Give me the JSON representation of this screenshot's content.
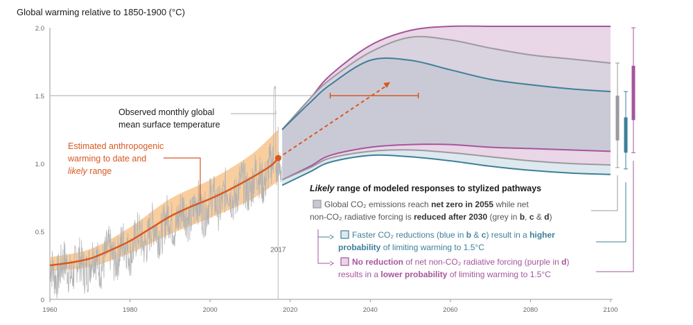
{
  "colors": {
    "orange": "#d9581f",
    "orange_band": "#f8c68d",
    "grey": "#9a9aa0",
    "grey_fill": "#c7c8d3",
    "blue": "#3e7f98",
    "blue_fill": "#dde9ee",
    "purple": "#a6559b",
    "purple_fill": "#e9d6e6",
    "observed": "#b3b3b3"
  },
  "chart_data": {
    "type": "line",
    "title": "Global warming relative to 1850-1900 (°C)",
    "xlim": [
      1960,
      2100
    ],
    "ylim": [
      0,
      2.0
    ],
    "xticks": [
      "1960",
      "1980",
      "2000",
      "2020",
      "2040",
      "2060",
      "2080",
      "2100"
    ],
    "yticks": [
      "0",
      "0.5",
      "1.0",
      "1.5",
      "2.0"
    ],
    "reference_line_y": 1.5,
    "marker_year_label": "2017",
    "series": [
      {
        "name": "Estimated anthropogenic warming (central)",
        "x": [
          1960,
          1965,
          1970,
          1975,
          1980,
          1985,
          1990,
          1995,
          2000,
          2005,
          2010,
          2015,
          2017
        ],
        "y": [
          0.25,
          0.27,
          0.3,
          0.36,
          0.43,
          0.52,
          0.61,
          0.68,
          0.74,
          0.81,
          0.89,
          0.98,
          1.04
        ]
      },
      {
        "name": "Anthropogenic warming likely range (low)",
        "x": [
          1960,
          1970,
          1980,
          1990,
          2000,
          2010,
          2017
        ],
        "y": [
          0.21,
          0.24,
          0.34,
          0.48,
          0.6,
          0.73,
          0.87
        ]
      },
      {
        "name": "Anthropogenic warming likely range (high)",
        "x": [
          1960,
          1970,
          1980,
          1990,
          2000,
          2010,
          2017
        ],
        "y": [
          0.31,
          0.37,
          0.53,
          0.74,
          0.88,
          1.06,
          1.25
        ]
      },
      {
        "name": "Extrapolated trend",
        "x": [
          2017,
          2045
        ],
        "y": [
          1.04,
          1.6
        ]
      },
      {
        "name": "Time range to reach 1.5°C",
        "x": [
          2030,
          2052
        ],
        "y": [
          1.5,
          1.5
        ]
      },
      {
        "name": "Purple pathway upper",
        "x": [
          2018,
          2025,
          2030,
          2040,
          2050,
          2060,
          2070,
          2080,
          2090,
          2100
        ],
        "y": [
          1.25,
          1.48,
          1.65,
          1.87,
          1.98,
          2.01,
          2.01,
          2.01,
          2.01,
          2.01
        ]
      },
      {
        "name": "Grey pathway upper",
        "x": [
          2018,
          2025,
          2030,
          2040,
          2050,
          2060,
          2070,
          2080,
          2090,
          2100
        ],
        "y": [
          1.25,
          1.48,
          1.62,
          1.82,
          1.93,
          1.91,
          1.85,
          1.8,
          1.77,
          1.74
        ]
      },
      {
        "name": "Blue pathway upper",
        "x": [
          2018,
          2025,
          2030,
          2040,
          2050,
          2060,
          2070,
          2080,
          2090,
          2100
        ],
        "y": [
          1.25,
          1.45,
          1.58,
          1.76,
          1.76,
          1.69,
          1.62,
          1.58,
          1.55,
          1.53
        ]
      },
      {
        "name": "Purple pathway lower",
        "x": [
          2018,
          2025,
          2030,
          2040,
          2050,
          2060,
          2070,
          2080,
          2090,
          2100
        ],
        "y": [
          0.88,
          0.98,
          1.06,
          1.12,
          1.14,
          1.14,
          1.12,
          1.11,
          1.1,
          1.09
        ]
      },
      {
        "name": "Grey pathway lower",
        "x": [
          2018,
          2025,
          2030,
          2040,
          2050,
          2060,
          2070,
          2080,
          2090,
          2100
        ],
        "y": [
          0.88,
          0.97,
          1.04,
          1.09,
          1.1,
          1.08,
          1.05,
          1.02,
          1.0,
          0.99
        ]
      },
      {
        "name": "Blue pathway lower",
        "x": [
          2018,
          2025,
          2030,
          2040,
          2050,
          2060,
          2070,
          2080,
          2090,
          2100
        ],
        "y": [
          0.84,
          0.94,
          1.01,
          1.06,
          1.05,
          1.02,
          0.98,
          0.95,
          0.93,
          0.92
        ]
      }
    ],
    "right_bars": [
      {
        "name": "grey",
        "whisker": [
          0.97,
          1.74
        ],
        "box": [
          1.17,
          1.5
        ]
      },
      {
        "name": "blue",
        "whisker": [
          0.96,
          1.53
        ],
        "box": [
          1.08,
          1.34
        ]
      },
      {
        "name": "purple",
        "whisker": [
          1.08,
          2.0
        ],
        "box": [
          1.32,
          1.72
        ]
      }
    ],
    "annotations": {
      "observed_line1": "Observed monthly global",
      "observed_line2": "mean surface temperature",
      "anthro_line1": "Estimated anthropogenic",
      "anthro_line2": "warming to date and",
      "anthro_likely": "likely",
      "anthro_range": "range"
    },
    "legend": {
      "heading_italic": "Likely",
      "heading_rest": "range of modeled responses to stylized pathways",
      "grey_l1_a": "Global CO₂ emissions reach",
      "grey_l1_b": "net zero in 2055",
      "grey_l1_c": "while net",
      "grey_l2_a": "non-CO₂ radiative forcing is",
      "grey_l2_b": "reduced after 2030",
      "grey_l2_c": "(grey in",
      "grey_l2_d": "b",
      "grey_l2_e": ",",
      "grey_l2_f": "c",
      "grey_l2_g": "&",
      "grey_l2_h": "d",
      "grey_l2_i": ")",
      "blue_l1_a": "Faster CO₂ reductions (blue in",
      "blue_l1_b": "b",
      "blue_l1_c": "&",
      "blue_l1_d": "c",
      "blue_l1_e": ") result in a",
      "blue_l1_f": "higher",
      "blue_l2_a": "probability",
      "blue_l2_b": "of limiting warming to 1.5°C",
      "purple_l1_a": "No reduction",
      "purple_l1_b": "of net non-CO₂ radiative forcing (purple in",
      "purple_l1_c": "d",
      "purple_l1_d": ")",
      "purple_l2_a": "results in a",
      "purple_l2_b": "lower probability",
      "purple_l2_c": "of limiting warming to 1.5°C"
    }
  }
}
